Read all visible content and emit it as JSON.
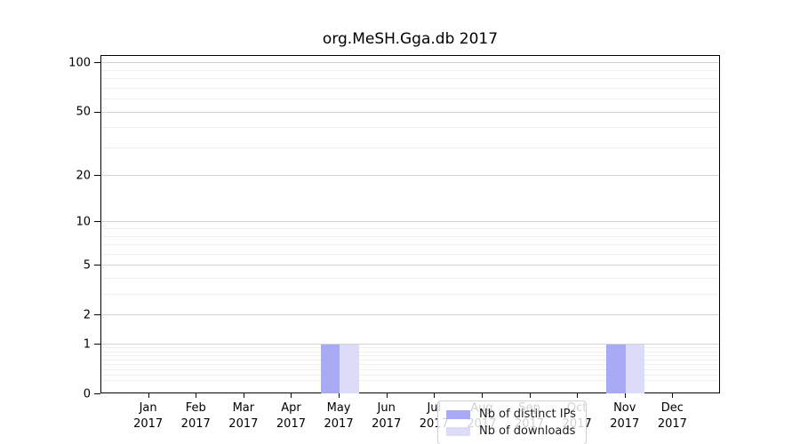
{
  "chart_data": {
    "type": "bar",
    "title": "org.MeSH.Gga.db 2017",
    "categories": [
      "Jan",
      "Feb",
      "Mar",
      "Apr",
      "May",
      "Jun",
      "Jul",
      "Aug",
      "Sep",
      "Oct",
      "Nov",
      "Dec"
    ],
    "x_year_label": "2017",
    "series": [
      {
        "name": "Nb of distinct IPs",
        "values": [
          0,
          0,
          0,
          0,
          1,
          0,
          0,
          0,
          0,
          0,
          1,
          0
        ]
      },
      {
        "name": "Nb of downloads",
        "values": [
          0,
          0,
          0,
          0,
          1,
          0,
          0,
          0,
          0,
          0,
          1,
          0
        ]
      }
    ],
    "yscale": "log1p",
    "ylim": [
      0,
      111
    ],
    "yticks": [
      0,
      1,
      2,
      5,
      10,
      20,
      50,
      100
    ],
    "y_minor_ticks": [
      0.2,
      0.3,
      0.4,
      0.5,
      0.6,
      0.7,
      0.8,
      0.9,
      3,
      4,
      6,
      7,
      8,
      9,
      30,
      40,
      60,
      70,
      80,
      90
    ],
    "grid": "on",
    "legend_position": "lower left-of-center inside plot"
  },
  "legend": {
    "items": [
      {
        "label": "Nb of distinct IPs",
        "color": "#a9a9f4"
      },
      {
        "label": "Nb of downloads",
        "color": "#dcdcf8"
      }
    ]
  },
  "colors": {
    "bar_distinct_ips": "#a9a9f4",
    "bar_downloads": "#dcdcf8",
    "grid_major": "#d3d3d3",
    "grid_minor": "#efefef",
    "axis": "#000000",
    "text": "#000000",
    "legend_border": "#d0d0d0"
  }
}
